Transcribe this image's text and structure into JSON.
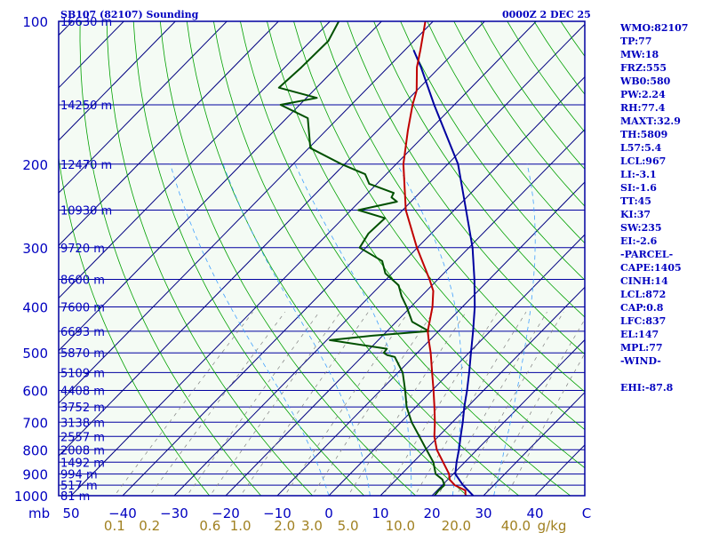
{
  "title_left": "SB107 (82107) Sounding",
  "title_right": "0000Z  2 DEC 25",
  "colors": {
    "frame": "#0000a0",
    "isobar": "#0000a0",
    "isotherm": "#000080",
    "dry_adiabat": "#00a000",
    "moist_adiabat": "#40a0ff",
    "mixing_ratio": "#808080",
    "temperature": "#c00000",
    "dewpoint": "#005000",
    "parcel": "#0000a0",
    "background": "#f4fbf4",
    "label": "#0000c0",
    "mixing_label": "#a08020"
  },
  "chart_data": {
    "type": "skew-t",
    "pressure_axis_unit": "mb",
    "pressure_levels": [
      {
        "p": 100,
        "label": "100",
        "height_label": "16630 m"
      },
      {
        "p": 150,
        "label": "",
        "height_label": "14250 m"
      },
      {
        "p": 200,
        "label": "200",
        "height_label": "12470 m"
      },
      {
        "p": 250,
        "label": "",
        "height_label": "10930 m"
      },
      {
        "p": 300,
        "label": "300",
        "height_label": "9720 m"
      },
      {
        "p": 350,
        "label": "",
        "height_label": "8600 m"
      },
      {
        "p": 400,
        "label": "400",
        "height_label": "7600 m"
      },
      {
        "p": 450,
        "label": "",
        "height_label": "6693 m"
      },
      {
        "p": 500,
        "label": "500",
        "height_label": "5870 m"
      },
      {
        "p": 550,
        "label": "",
        "height_label": "5109 m"
      },
      {
        "p": 600,
        "label": "600",
        "height_label": "4408 m"
      },
      {
        "p": 650,
        "label": "",
        "height_label": "3752 m"
      },
      {
        "p": 700,
        "label": "700",
        "height_label": "3138 m"
      },
      {
        "p": 750,
        "label": "",
        "height_label": "2557 m"
      },
      {
        "p": 800,
        "label": "800",
        "height_label": "2008 m"
      },
      {
        "p": 850,
        "label": "",
        "height_label": "1492 m"
      },
      {
        "p": 900,
        "label": "900",
        "height_label": "994 m"
      },
      {
        "p": 950,
        "label": "",
        "height_label": "517 m"
      },
      {
        "p": 1000,
        "label": "1000",
        "height_label": "81 m"
      }
    ],
    "temperature_ticks": [
      {
        "t": -50,
        "label": "50"
      },
      {
        "t": -40,
        "label": "−40"
      },
      {
        "t": -30,
        "label": "−30"
      },
      {
        "t": -20,
        "label": "−20"
      },
      {
        "t": -10,
        "label": "−10"
      },
      {
        "t": 0,
        "label": "0"
      },
      {
        "t": 10,
        "label": "10"
      },
      {
        "t": 20,
        "label": "20"
      },
      {
        "t": 30,
        "label": "30"
      },
      {
        "t": 40,
        "label": "40"
      },
      {
        "t": 50,
        "label": "C"
      }
    ],
    "mixing_ratio_ticks": [
      {
        "w": 0.1,
        "label": "0.1"
      },
      {
        "w": 0.2,
        "label": "0.2"
      },
      {
        "w": 0.6,
        "label": "0.6"
      },
      {
        "w": 1.0,
        "label": "1.0"
      },
      {
        "w": 2.0,
        "label": "2.0"
      },
      {
        "w": 3.0,
        "label": "3.0"
      },
      {
        "w": 5.0,
        "label": "5.0"
      },
      {
        "w": 10.0,
        "label": "10.0"
      },
      {
        "w": 20.0,
        "label": "20.0"
      },
      {
        "w": 40.0,
        "label": "40.0"
      },
      {
        "w": 60.0,
        "label": "g/kg"
      }
    ],
    "mixing_ratio_ref_pressure": 1000,
    "temperature_profile": [
      [
        1000,
        26.5
      ],
      [
        975,
        25.5
      ],
      [
        950,
        22.4
      ],
      [
        925,
        20.4
      ],
      [
        900,
        19.2
      ],
      [
        850,
        15.8
      ],
      [
        800,
        12.2
      ],
      [
        750,
        9.2
      ],
      [
        700,
        6.6
      ],
      [
        650,
        3.6
      ],
      [
        600,
        0.3
      ],
      [
        550,
        -3.4
      ],
      [
        500,
        -7.4
      ],
      [
        470,
        -10.2
      ],
      [
        450,
        -12.1
      ],
      [
        400,
        -15.8
      ],
      [
        370,
        -18.7
      ],
      [
        350,
        -21.6
      ],
      [
        300,
        -30.1
      ],
      [
        250,
        -39.4
      ],
      [
        200,
        -48.6
      ],
      [
        170,
        -54.1
      ],
      [
        150,
        -58.1
      ],
      [
        140,
        -60.0
      ],
      [
        125,
        -64.4
      ],
      [
        115,
        -67.0
      ],
      [
        100,
        -71.5
      ]
    ],
    "dewpoint_profile": [
      [
        1000,
        20.5
      ],
      [
        975,
        20.3
      ],
      [
        950,
        20.4
      ],
      [
        925,
        19.0
      ],
      [
        900,
        16.6
      ],
      [
        850,
        13.9
      ],
      [
        800,
        10.2
      ],
      [
        750,
        6.3
      ],
      [
        700,
        2.1
      ],
      [
        650,
        -1.8
      ],
      [
        600,
        -5.2
      ],
      [
        550,
        -9.1
      ],
      [
        510,
        -13.6
      ],
      [
        505,
        -15.5
      ],
      [
        500,
        -16.5
      ],
      [
        490,
        -16.7
      ],
      [
        470,
        -29.4
      ],
      [
        460,
        -22.0
      ],
      [
        450,
        -11.9
      ],
      [
        430,
        -16.9
      ],
      [
        400,
        -20.8
      ],
      [
        380,
        -23.8
      ],
      [
        360,
        -26.5
      ],
      [
        340,
        -31.3
      ],
      [
        320,
        -34.3
      ],
      [
        300,
        -41.2
      ],
      [
        280,
        -42.2
      ],
      [
        260,
        -41.9
      ],
      [
        250,
        -48.6
      ],
      [
        240,
        -42.7
      ],
      [
        235,
        -44.6
      ],
      [
        230,
        -45.0
      ],
      [
        220,
        -51.5
      ],
      [
        210,
        -54.1
      ],
      [
        200,
        -60.6
      ],
      [
        185,
        -69.7
      ],
      [
        160,
        -75.9
      ],
      [
        150,
        -83.7
      ],
      [
        145,
        -78.0
      ],
      [
        138,
        -87.3
      ],
      [
        125,
        -86.8
      ],
      [
        110,
        -86.6
      ],
      [
        100,
        -88.3
      ]
    ],
    "parcel_profile": [
      [
        1000,
        28.0
      ],
      [
        950,
        24.0
      ],
      [
        900,
        20.4
      ],
      [
        850,
        18.4
      ],
      [
        800,
        16.5
      ],
      [
        750,
        14.3
      ],
      [
        700,
        12.0
      ],
      [
        650,
        9.4
      ],
      [
        600,
        6.8
      ],
      [
        550,
        3.8
      ],
      [
        500,
        0.4
      ],
      [
        450,
        -3.3
      ],
      [
        400,
        -7.6
      ],
      [
        350,
        -12.9
      ],
      [
        300,
        -19.3
      ],
      [
        250,
        -27.7
      ],
      [
        200,
        -38.0
      ],
      [
        150,
        -53.9
      ],
      [
        125,
        -63.6
      ],
      [
        115,
        -68.3
      ]
    ],
    "stats": [
      "WMO:82107",
      "TP:77",
      "MW:18",
      "FRZ:555",
      "WB0:580",
      "PW:2.24",
      "RH:77.4",
      "MAXT:32.9",
      "TH:5809",
      "L57:5.4",
      "LCL:967",
      "LI:-3.1",
      "SI:-1.6",
      "TT:45",
      "KI:37",
      "SW:235",
      "EI:-2.6",
      "-PARCEL-",
      "CAPE:1405",
      "CINH:14",
      "LCL:872",
      "CAP:0.8",
      "LFC:837",
      "EL:147",
      "MPL:77",
      "-WIND-",
      "",
      "EHI:-87.8"
    ]
  }
}
